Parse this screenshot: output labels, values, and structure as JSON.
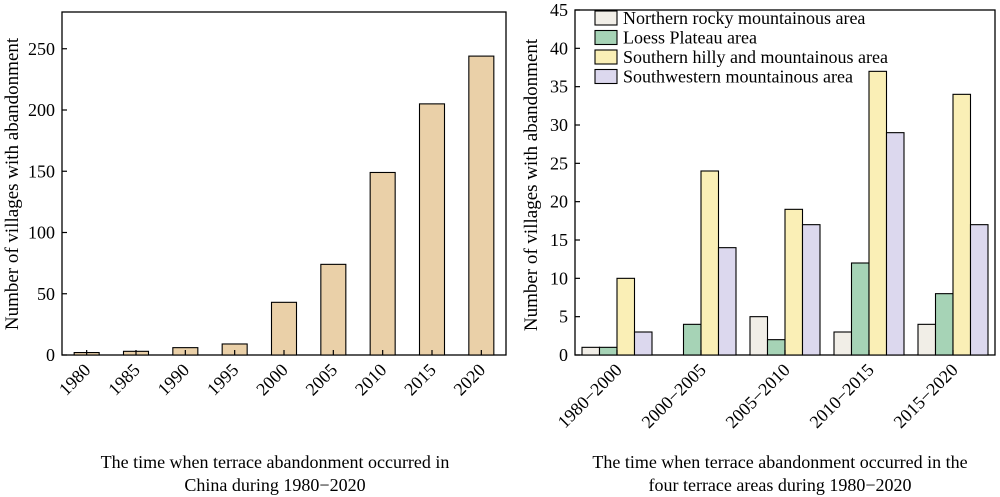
{
  "chart_data": [
    {
      "type": "bar",
      "categories": [
        "1980",
        "1985",
        "1990",
        "1995",
        "2000",
        "2005",
        "2010",
        "2015",
        "2020"
      ],
      "values": [
        2,
        3,
        6,
        9,
        43,
        74,
        149,
        205,
        244
      ],
      "ylabel": "Number of villages with abandonment",
      "xlabel_lines": [
        "The time when terrace abandonment occurred in",
        "China during 1980−2020"
      ],
      "ylim": [
        0,
        280
      ],
      "yticks": [
        0,
        50,
        100,
        150,
        200,
        250
      ],
      "bar_color": "#ead0a8",
      "grid": false
    },
    {
      "type": "bar",
      "categories": [
        "1980−2000",
        "2000−2005",
        "2005−2010",
        "2010−2015",
        "2015−2020"
      ],
      "series": [
        {
          "name": "Northern rocky mountainous area",
          "color": "#f1eee7",
          "values": [
            1,
            0,
            5,
            3,
            4
          ]
        },
        {
          "name": "Loess Plateau area",
          "color": "#a6d3b6",
          "values": [
            1,
            4,
            2,
            12,
            8
          ]
        },
        {
          "name": "Southern hilly and mountainous area",
          "color": "#faefb6",
          "values": [
            10,
            24,
            19,
            37,
            34
          ]
        },
        {
          "name": "Southwestern mountainous area",
          "color": "#dcd8ee",
          "values": [
            3,
            14,
            17,
            29,
            17
          ]
        }
      ],
      "ylabel": "Number of villages with abandonment",
      "xlabel_lines": [
        "The time when terrace abandonment occurred in the",
        "four terrace areas during 1980−2020"
      ],
      "ylim": [
        0,
        45
      ],
      "yticks": [
        0,
        5,
        10,
        15,
        20,
        25,
        30,
        35,
        40,
        45
      ],
      "legend_position": "top-left",
      "grid": false
    }
  ]
}
